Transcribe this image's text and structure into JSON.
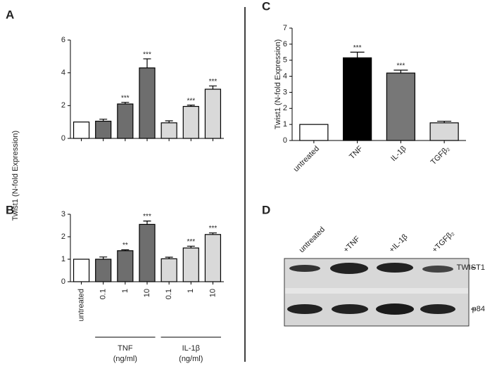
{
  "chart_data": [
    {
      "type": "bar",
      "panel": "A",
      "ylabel": "Twist1 (N-fold Expression)",
      "categories": [
        null,
        null,
        null,
        null,
        null,
        null,
        null
      ],
      "values": [
        1,
        1.05,
        2.1,
        4.3,
        0.95,
        1.95,
        3.0
      ],
      "errors": [
        0,
        0.12,
        0.1,
        0.55,
        0.12,
        0.08,
        0.2
      ],
      "annotations": [
        null,
        null,
        "***",
        "***",
        null,
        "***",
        "***"
      ],
      "colors": [
        "#ffffff",
        "#6e6e6e",
        "#6e6e6e",
        "#6e6e6e",
        "#d9d9d9",
        "#d9d9d9",
        "#d9d9d9"
      ],
      "ylim": [
        0,
        6
      ],
      "yticks": [
        0,
        2,
        4,
        6
      ]
    },
    {
      "type": "bar",
      "panel": "B",
      "categories": [
        "untreated",
        "0.1",
        "1",
        "10",
        "0.1",
        "1",
        "10"
      ],
      "groups": [
        {
          "name": "TNF",
          "unit": "(ng/ml)"
        },
        {
          "name": "IL-1β",
          "unit": "(ng/ml)"
        }
      ],
      "values": [
        1,
        1.0,
        1.38,
        2.55,
        1.02,
        1.5,
        2.1
      ],
      "errors": [
        0,
        0.1,
        0.04,
        0.15,
        0.07,
        0.08,
        0.07
      ],
      "annotations": [
        null,
        null,
        "**",
        "***",
        null,
        "***",
        "***"
      ],
      "colors": [
        "#ffffff",
        "#6e6e6e",
        "#6e6e6e",
        "#6e6e6e",
        "#d9d9d9",
        "#d9d9d9",
        "#d9d9d9"
      ],
      "ylim": [
        0,
        3
      ],
      "yticks": [
        0,
        1,
        2,
        3
      ]
    },
    {
      "type": "bar",
      "panel": "C",
      "ylabel": "Twist1 (N-fold Expression)",
      "categories": [
        "untreated",
        "TNF",
        "IL-1β",
        "TGFβ₂"
      ],
      "values": [
        1,
        5.15,
        4.2,
        1.1
      ],
      "errors": [
        0,
        0.35,
        0.18,
        0.1
      ],
      "annotations": [
        null,
        "***",
        "***",
        null
      ],
      "colors": [
        "#ffffff",
        "#000000",
        "#777777",
        "#d9d9d9"
      ],
      "ylim": [
        0,
        7
      ],
      "yticks": [
        0,
        1,
        2,
        3,
        4,
        5,
        6,
        7
      ]
    }
  ],
  "blot": {
    "panel": "D",
    "lanes": [
      "untreated",
      "+TNF",
      "+IL-1β",
      "+TGFβ₂"
    ],
    "bands": [
      "TWIST1",
      "p84"
    ]
  }
}
